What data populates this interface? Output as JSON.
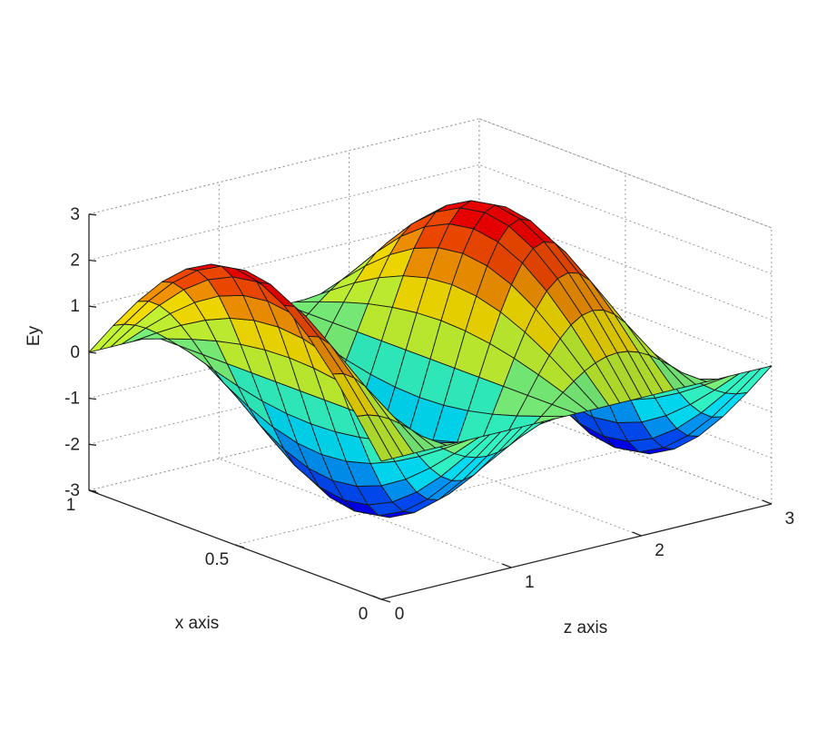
{
  "chart_data": {
    "type": "surface",
    "title": "",
    "xlabel": "x axis",
    "zlabel": "z axis",
    "ylabel": "Ey",
    "x_range": [
      0,
      1
    ],
    "z_range": [
      0,
      3
    ],
    "ylim": [
      -3,
      3
    ],
    "x_ticks": [
      {
        "value": 0,
        "label": "0"
      },
      {
        "value": 0.5,
        "label": "0.5"
      },
      {
        "value": 1,
        "label": "1"
      }
    ],
    "z_ticks": [
      {
        "value": 0,
        "label": "0"
      },
      {
        "value": 1,
        "label": "1"
      },
      {
        "value": 2,
        "label": "2"
      },
      {
        "value": 3,
        "label": "3"
      }
    ],
    "y_ticks": [
      {
        "value": -3,
        "label": "-3"
      },
      {
        "value": -2,
        "label": "-2"
      },
      {
        "value": -1,
        "label": "-1"
      },
      {
        "value": 0,
        "label": "0"
      },
      {
        "value": 1,
        "label": "1"
      },
      {
        "value": 2,
        "label": "2"
      },
      {
        "value": 3,
        "label": "3"
      }
    ],
    "function": "Ey = 3 * sin(pi * x) * sin(pi * (1 + 6 * z / 3) / 2)",
    "amplitude": 3,
    "grid": true,
    "colormap": "jet",
    "colormap_colors": [
      "#0000ff",
      "#00ffff",
      "#ffff00",
      "#ff0000"
    ],
    "edge_color": "#1a1a1a"
  }
}
